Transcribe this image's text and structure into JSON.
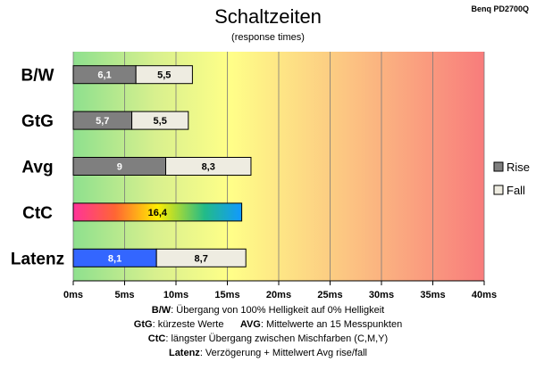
{
  "chart_data": {
    "type": "bar",
    "title": "Schaltzeiten",
    "subtitle": "(response times)",
    "model": "Benq PD2700Q",
    "categories": [
      "B/W",
      "GtG",
      "Avg",
      "CtC",
      "Latenz"
    ],
    "series": [
      {
        "name": "Rise",
        "values": [
          6.1,
          5.7,
          9,
          16.4,
          8.1
        ],
        "labels": [
          "6,1",
          "5,7",
          "9",
          "16,4",
          "8,1"
        ]
      },
      {
        "name": "Fall",
        "values": [
          5.5,
          5.5,
          8.3,
          null,
          8.7
        ],
        "labels": [
          "5,5",
          "5,5",
          "8,3",
          null,
          "8,7"
        ]
      }
    ],
    "stacked": true,
    "x_ticks": [
      "0ms",
      "5ms",
      "10ms",
      "15ms",
      "20ms",
      "25ms",
      "30ms",
      "35ms",
      "40ms"
    ],
    "xlim": [
      0,
      40
    ],
    "x_unit": "ms",
    "grid": true,
    "legend_position": "right",
    "background": "gradient green-yellow-red",
    "colors": {
      "rise": "#7f7f7f",
      "fall": "#eeece1",
      "latenz_rise": "#3366ff",
      "ctc_gradient": [
        "#ff3399",
        "#ff6600",
        "#ffff00",
        "#00cc99",
        "#0099ff"
      ]
    }
  },
  "notes": {
    "line1_key": "B/W",
    "line1_text": ":  Übergang von 100% Helligkeit auf 0% Helligkeit",
    "line2_key1": "GtG",
    "line2_text1": ": kürzeste  Werte",
    "line2_key2": "AVG",
    "line2_text2": ": Mittelwerte  an 15 Messpunkten",
    "line3_key": "CtC",
    "line3_text": ": längster Übergang  zwischen Mischfarben (C,M,Y)",
    "line4_key": "Latenz",
    "line4_text": ": Verzögerung  + Mittelwert  Avg rise/fall"
  }
}
